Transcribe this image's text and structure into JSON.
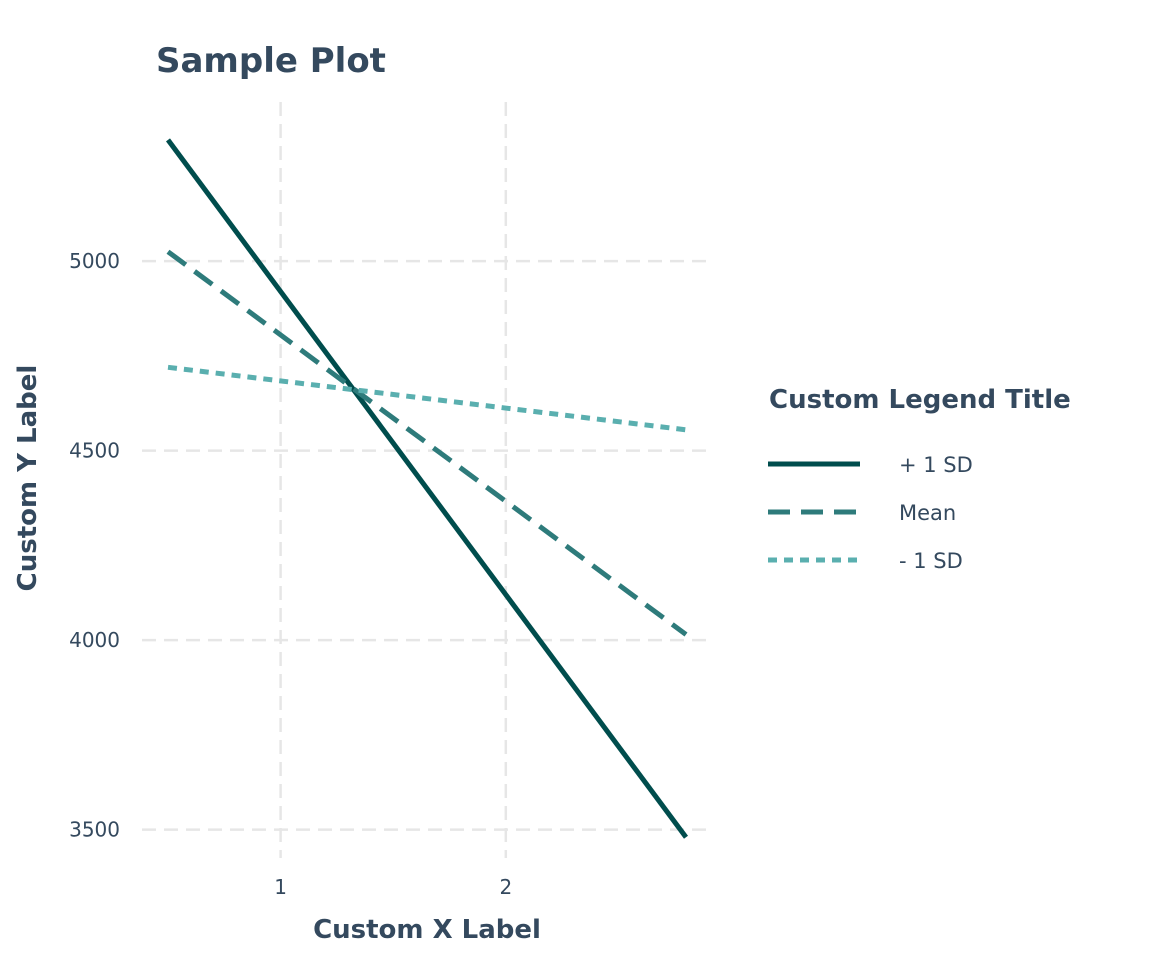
{
  "chart_data": {
    "type": "line",
    "title": "Sample Plot",
    "xlabel": "Custom X Label",
    "ylabel": "Custom Y Label",
    "xlim": [
      0.5,
      2.8
    ],
    "ylim": [
      3420,
      5420
    ],
    "x_ticks": [
      1,
      2
    ],
    "y_ticks": [
      3500,
      4000,
      4500,
      5000
    ],
    "x_tick_labels": [
      "1",
      "2"
    ],
    "y_tick_labels": [
      "3500",
      "4000",
      "4500",
      "5000"
    ],
    "grid": true,
    "grid_style": "dashed",
    "legend_placement": "right",
    "legend_title": "Custom Legend Title",
    "x": [
      0.5,
      2.8
    ],
    "series": [
      {
        "name": "+ 1 SD",
        "values": [
          5320,
          3480
        ],
        "color": "#004d4d",
        "dash": "solid"
      },
      {
        "name": "Mean",
        "values": [
          5025,
          4015
        ],
        "color": "#2e7b7b",
        "dash": "dashed"
      },
      {
        "name": "- 1 SD",
        "values": [
          4720,
          4555
        ],
        "color": "#5aafaf",
        "dash": "dotted"
      }
    ],
    "text_color": "#34495e",
    "grid_color": "#e6e6e6"
  }
}
